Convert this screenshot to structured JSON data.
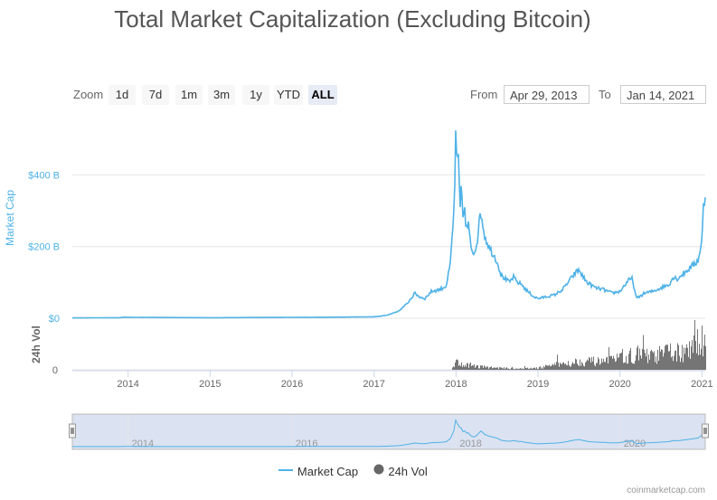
{
  "title": "Total Market Capitalization (Excluding Bitcoin)",
  "zoom": {
    "label": "Zoom",
    "buttons": [
      "1d",
      "7d",
      "1m",
      "3m",
      "1y",
      "YTD",
      "ALL"
    ],
    "active": "ALL"
  },
  "range": {
    "from_label": "From",
    "from_value": "Apr 29, 2013",
    "to_label": "To",
    "to_value": "Jan 14, 2021"
  },
  "credit": "coinmarketcap.com",
  "colors": {
    "market_cap": "#4eb2e7",
    "volume": "#666666",
    "navigator_mask": "#ccd6eb",
    "active_button": "#e6ebf5"
  },
  "chart_data": {
    "type": "area",
    "title": "Total Market Capitalization (Excluding Bitcoin)",
    "xlabel": "",
    "ylabel": "Market Cap",
    "ylabel_secondary": "24h Vol",
    "ylim": [
      0,
      560
    ],
    "xlim": [
      2013.32,
      2021.04
    ],
    "y_ticks": [
      0,
      200,
      400
    ],
    "y_tick_labels": [
      "$0",
      "$200 B",
      "$400 B"
    ],
    "vol_tick_labels": [
      "0"
    ],
    "x_ticks": [
      2014,
      2015,
      2016,
      2017,
      2018,
      2019,
      2020,
      2021
    ],
    "x_tick_labels": [
      "2014",
      "2015",
      "2016",
      "2017",
      "2018",
      "2019",
      "2020",
      "2021"
    ],
    "navigator_ticks": [
      2014,
      2016,
      2018,
      2020
    ],
    "navigator_tick_labels": [
      "2014",
      "2016",
      "2018",
      "2020"
    ],
    "series": [
      {
        "name": "Market Cap",
        "unit": "B USD",
        "x": [
          2013.32,
          2013.9,
          2013.95,
          2014.1,
          2014.5,
          2015.0,
          2015.5,
          2016.0,
          2016.5,
          2017.0,
          2017.15,
          2017.3,
          2017.4,
          2017.45,
          2017.5,
          2017.55,
          2017.62,
          2017.7,
          2017.8,
          2017.88,
          2017.93,
          2017.97,
          2017.98,
          2018.0,
          2018.01,
          2018.03,
          2018.05,
          2018.07,
          2018.08,
          2018.1,
          2018.12,
          2018.15,
          2018.18,
          2018.22,
          2018.26,
          2018.3,
          2018.35,
          2018.4,
          2018.45,
          2018.5,
          2018.55,
          2018.6,
          2018.65,
          2018.7,
          2018.75,
          2018.8,
          2018.85,
          2018.9,
          2018.95,
          2019.0,
          2019.1,
          2019.2,
          2019.3,
          2019.35,
          2019.4,
          2019.45,
          2019.5,
          2019.55,
          2019.6,
          2019.7,
          2019.8,
          2019.9,
          2020.0,
          2020.1,
          2020.15,
          2020.2,
          2020.3,
          2020.4,
          2020.5,
          2020.6,
          2020.65,
          2020.7,
          2020.8,
          2020.9,
          2020.95,
          2021.0,
          2021.02,
          2021.04
        ],
        "values": [
          1,
          1.5,
          3,
          2.5,
          2,
          1.5,
          2,
          2.5,
          3,
          4,
          8,
          20,
          40,
          55,
          70,
          60,
          55,
          75,
          80,
          90,
          150,
          280,
          330,
          540,
          420,
          440,
          300,
          380,
          270,
          320,
          250,
          260,
          200,
          180,
          220,
          300,
          230,
          200,
          180,
          160,
          120,
          110,
          100,
          115,
          100,
          95,
          80,
          70,
          60,
          55,
          60,
          65,
          80,
          95,
          110,
          125,
          135,
          115,
          100,
          85,
          80,
          70,
          75,
          105,
          110,
          55,
          70,
          75,
          85,
          95,
          115,
          110,
          130,
          150,
          160,
          215,
          320,
          335
        ]
      },
      {
        "name": "24h Vol",
        "unit": "B USD",
        "x": [
          2017.95,
          2018.0,
          2018.05,
          2018.1,
          2018.2,
          2018.3,
          2018.5,
          2018.8,
          2019.0,
          2019.2,
          2019.4,
          2019.6,
          2019.8,
          2020.0,
          2020.2,
          2020.4,
          2020.6,
          2020.7,
          2020.8,
          2020.9,
          2021.0,
          2021.04
        ],
        "values": [
          8,
          12,
          10,
          8,
          6,
          5,
          3,
          2,
          3,
          8,
          12,
          14,
          12,
          18,
          25,
          20,
          30,
          28,
          26,
          35,
          55,
          40
        ]
      }
    ],
    "legend": [
      "Market Cap",
      "24h Vol"
    ],
    "legend_position": "bottom-center",
    "grid": true
  }
}
